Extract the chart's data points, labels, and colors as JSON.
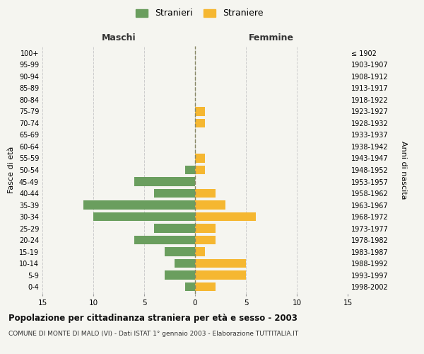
{
  "age_groups": [
    "0-4",
    "5-9",
    "10-14",
    "15-19",
    "20-24",
    "25-29",
    "30-34",
    "35-39",
    "40-44",
    "45-49",
    "50-54",
    "55-59",
    "60-64",
    "65-69",
    "70-74",
    "75-79",
    "80-84",
    "85-89",
    "90-94",
    "95-99",
    "100+"
  ],
  "birth_years": [
    "1998-2002",
    "1993-1997",
    "1988-1992",
    "1983-1987",
    "1978-1982",
    "1973-1977",
    "1968-1972",
    "1963-1967",
    "1958-1962",
    "1953-1957",
    "1948-1952",
    "1943-1947",
    "1938-1942",
    "1933-1937",
    "1928-1932",
    "1923-1927",
    "1918-1922",
    "1913-1917",
    "1908-1912",
    "1903-1907",
    "≤ 1902"
  ],
  "maschi": [
    1,
    3,
    2,
    3,
    6,
    4,
    10,
    11,
    4,
    6,
    1,
    0,
    0,
    0,
    0,
    0,
    0,
    0,
    0,
    0,
    0
  ],
  "femmine": [
    2,
    5,
    5,
    1,
    2,
    2,
    6,
    3,
    2,
    0,
    1,
    1,
    0,
    0,
    1,
    1,
    0,
    0,
    0,
    0,
    0
  ],
  "color_maschi": "#6a9e5e",
  "color_femmine": "#f5b731",
  "title": "Popolazione per cittadinanza straniera per età e sesso - 2003",
  "subtitle": "COMUNE DI MONTE DI MALO (VI) - Dati ISTAT 1° gennaio 2003 - Elaborazione TUTTITALIA.IT",
  "header_left": "Maschi",
  "header_right": "Femmine",
  "ylabel_left": "Fasce di età",
  "ylabel_right": "Anni di nascita",
  "legend_maschi": "Stranieri",
  "legend_femmine": "Straniere",
  "xlim": 15,
  "bg_color": "#f5f5f0",
  "grid_color": "#cccccc"
}
